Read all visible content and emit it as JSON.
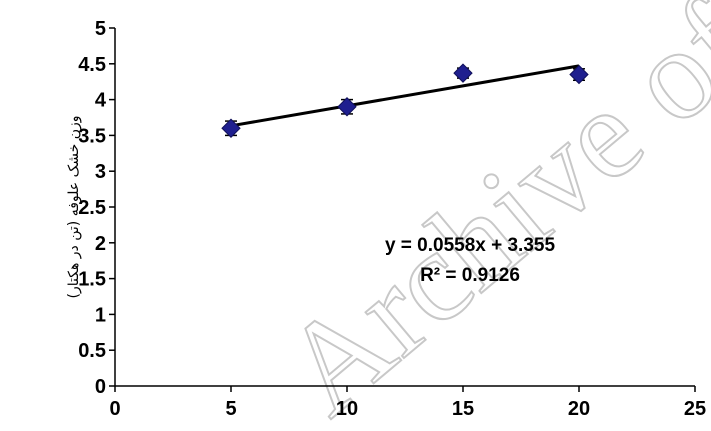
{
  "chart_data": {
    "type": "scatter",
    "x": [
      5,
      10,
      15,
      20
    ],
    "y": [
      3.6,
      3.9,
      4.37,
      4.35
    ],
    "error": [
      0.1,
      0.1,
      0.07,
      0.08
    ],
    "trendline": {
      "slope": 0.0558,
      "intercept": 3.355,
      "equation": "y = 0.0558x + 3.355",
      "r2_text": "R² = 0.9126"
    },
    "ylabel": "وزن خشک علوفه (تن در هکتار)",
    "xlabel": "",
    "xlim": [
      0,
      25
    ],
    "ylim": [
      0,
      5
    ],
    "xticks": [
      0,
      5,
      10,
      15,
      20,
      25
    ],
    "yticks": [
      "0",
      "0.5",
      "1",
      "1.5",
      "2",
      "2.5",
      "3",
      "3.5",
      "4",
      "4.5",
      "5"
    ],
    "grid": false,
    "marker_color": "#1f1f8f",
    "line_color": "#000000"
  },
  "watermark": "Archive of SID"
}
